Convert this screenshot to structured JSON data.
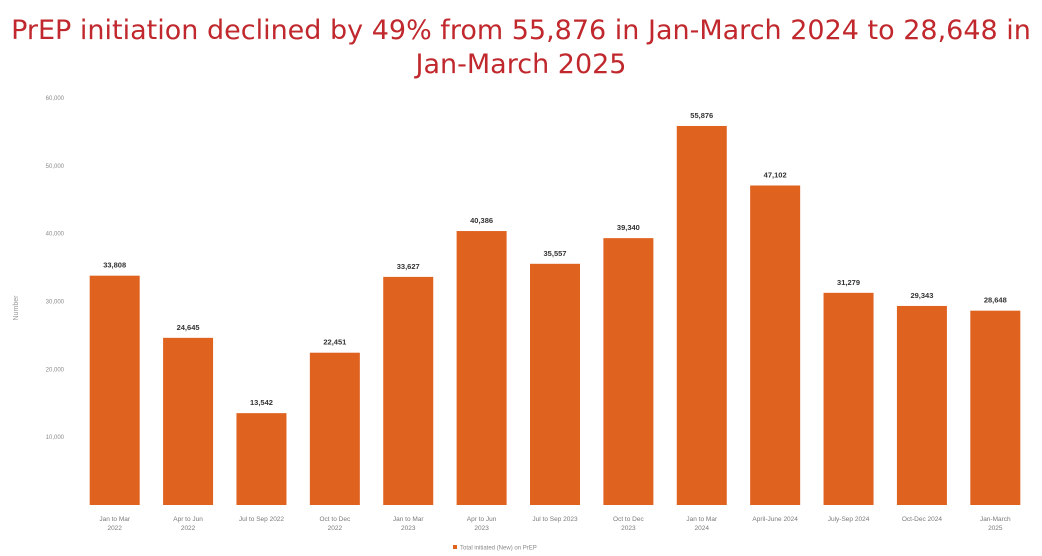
{
  "chart_data": {
    "type": "bar",
    "title": "PrEP initiation declined by 49% from 55,876 in Jan-March 2024 to 28,648 in Jan-March 2025",
    "ylabel": "Number",
    "xlabel": "",
    "ylim": [
      0,
      60000
    ],
    "yticks": [
      10000,
      20000,
      30000,
      40000,
      50000,
      60000
    ],
    "ytick_labels": [
      "10,000",
      "20,000",
      "30,000",
      "40,000",
      "50,000",
      "60,000"
    ],
    "grid": false,
    "legend_position": "bottom",
    "bar_color": "#e0621f",
    "categories": [
      [
        "Jan to Mar",
        "2022"
      ],
      [
        "Apr to Jun",
        "2022"
      ],
      [
        "Jul to Sep 2022"
      ],
      [
        "Oct to Dec",
        "2022"
      ],
      [
        "Jan to Mar",
        "2023"
      ],
      [
        "Apr to Jun",
        "2023"
      ],
      [
        "Jul to Sep 2023"
      ],
      [
        "Oct to Dec",
        "2023"
      ],
      [
        "Jan to Mar",
        "2024"
      ],
      [
        "April-June 2024"
      ],
      [
        "July-Sep 2024"
      ],
      [
        "Oct-Dec 2024"
      ],
      [
        "Jan-March",
        "2025"
      ]
    ],
    "series": [
      {
        "name": "Total initiated (New) on PrEP",
        "values": [
          33808,
          24645,
          13542,
          22451,
          33627,
          40386,
          35557,
          39340,
          55876,
          47102,
          31279,
          29343,
          28648
        ],
        "labels": [
          "33,808",
          "24,645",
          "13,542",
          "22,451",
          "33,627",
          "40,386",
          "35,557",
          "39,340",
          "55,876",
          "47,102",
          "31,279",
          "29,343",
          "28,648"
        ]
      }
    ]
  }
}
